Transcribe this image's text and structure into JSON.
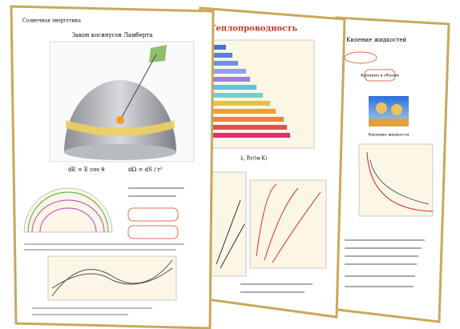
{
  "posters": [
    {
      "title": "Солнечная энергетика",
      "heading": "Закон косинусов Ламберта",
      "formula1": "dE = E cos θ",
      "formula2": "dΩ = dS / r²"
    },
    {
      "title": "Теплопроводность",
      "axis_label": "λ, Вт/(м·К)"
    },
    {
      "title": "Кипение жидкостей",
      "tag": "Кипение в объеме",
      "caption": "Кипение жидкости"
    }
  ]
}
